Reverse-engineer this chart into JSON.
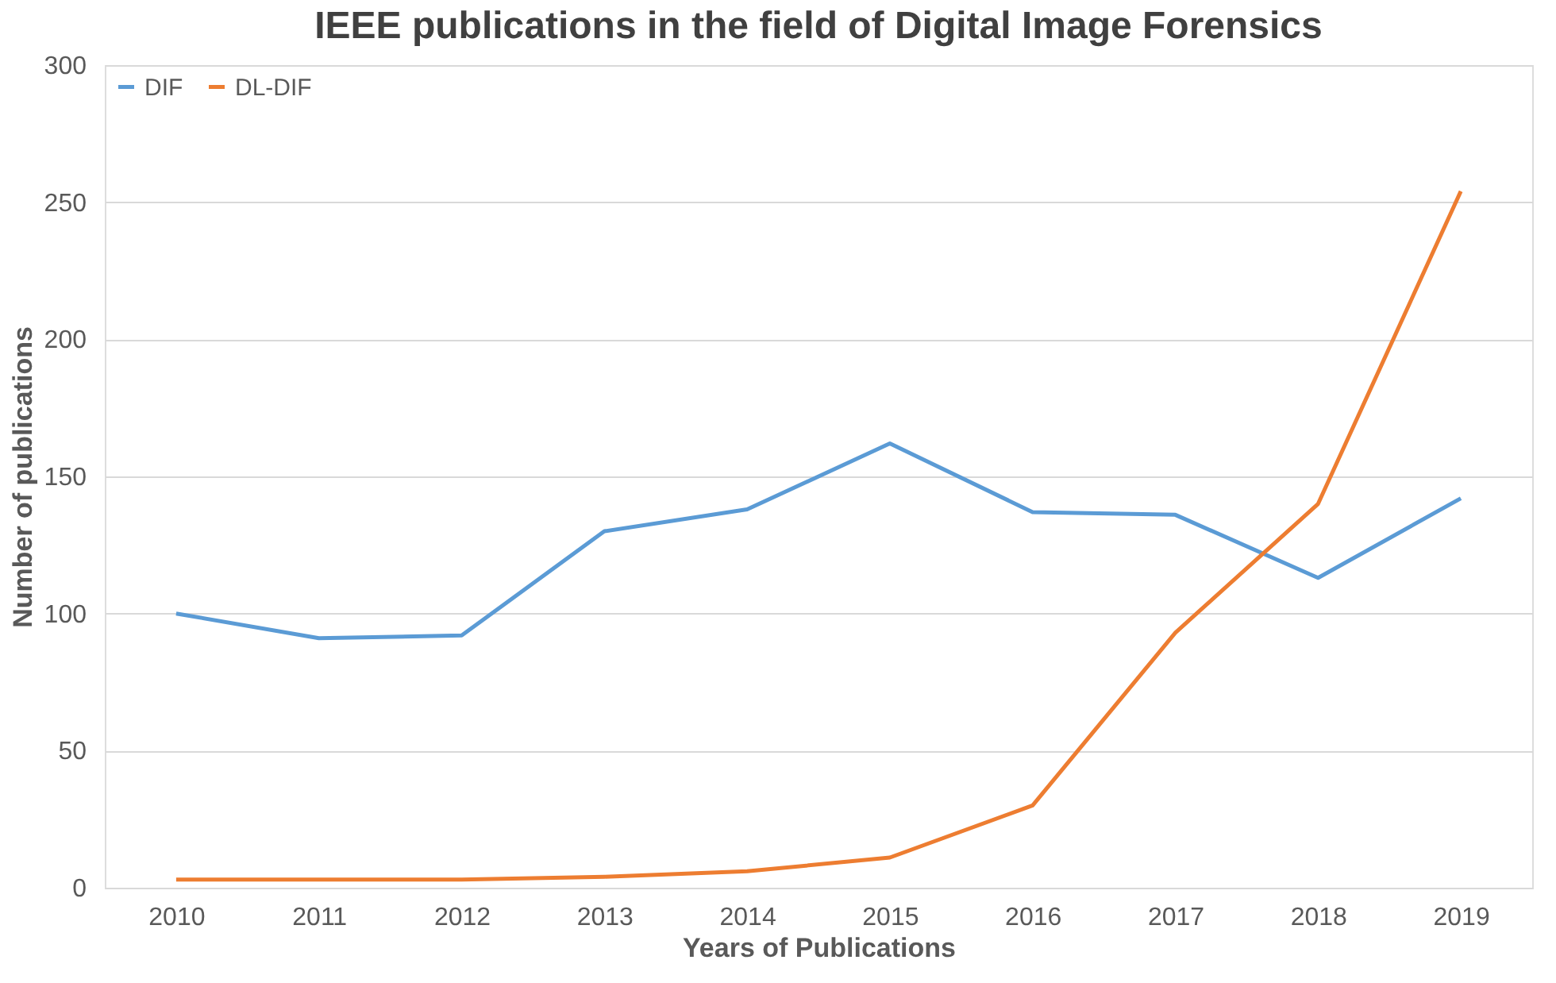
{
  "chart_data": {
    "type": "line",
    "title": "IEEE publications in the field of Digital Image Forensics",
    "xlabel": "Years of Publications",
    "ylabel": "Number of publications",
    "categories": [
      "2010",
      "2011",
      "2012",
      "2013",
      "2014",
      "2015",
      "2016",
      "2017",
      "2018",
      "2019"
    ],
    "series": [
      {
        "name": "DIF",
        "color": "#5b9bd5",
        "values": [
          100,
          91,
          92,
          130,
          138,
          162,
          137,
          136,
          113,
          142
        ]
      },
      {
        "name": "DL-DIF",
        "color": "#ed7d31",
        "values": [
          3,
          3,
          3,
          4,
          6,
          11,
          30,
          93,
          140,
          254
        ]
      }
    ],
    "ylim": [
      0,
      300
    ],
    "yticks": [
      0,
      50,
      100,
      150,
      200,
      250,
      300
    ],
    "grid": "y",
    "legend": "top left",
    "marker": "none",
    "line_style": "solid"
  }
}
